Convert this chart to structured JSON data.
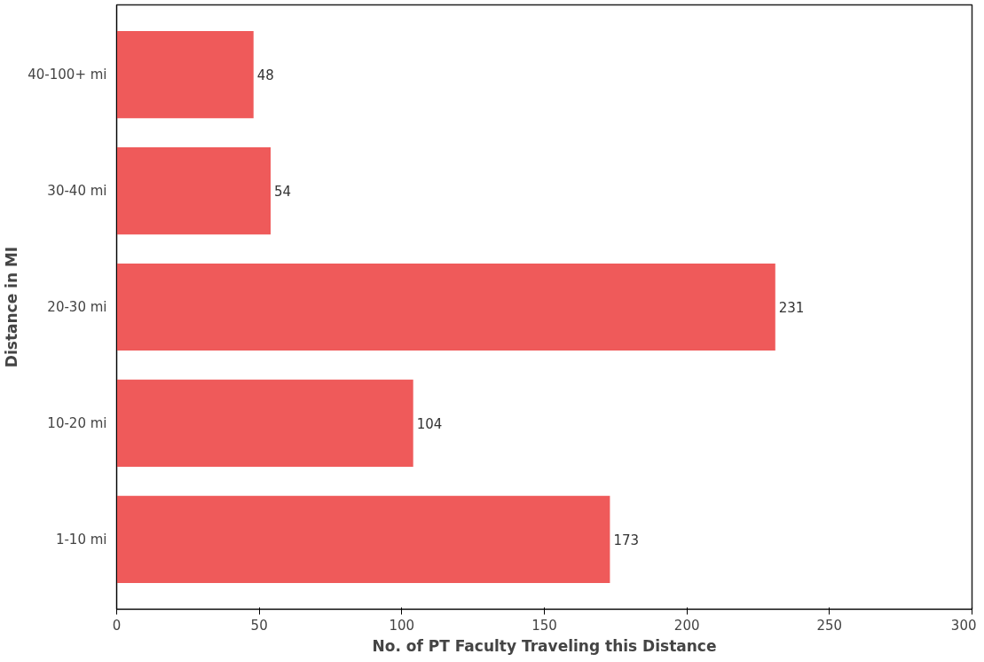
{
  "chart_data": {
    "type": "bar",
    "orientation": "horizontal",
    "xlabel": "No. of PT Faculty Traveling this Distance",
    "ylabel": "Distance in MI",
    "categories": [
      "40-100+ mi",
      "30-40 mi",
      "20-30 mi",
      "10-20 mi",
      "1-10 mi"
    ],
    "values": [
      48,
      54,
      231,
      104,
      173
    ],
    "color": "#ef5a5a",
    "xlim": [
      0,
      300
    ],
    "xticks": [
      0,
      50,
      100,
      150,
      200,
      250,
      300
    ],
    "grid": false,
    "data_labels": true
  }
}
